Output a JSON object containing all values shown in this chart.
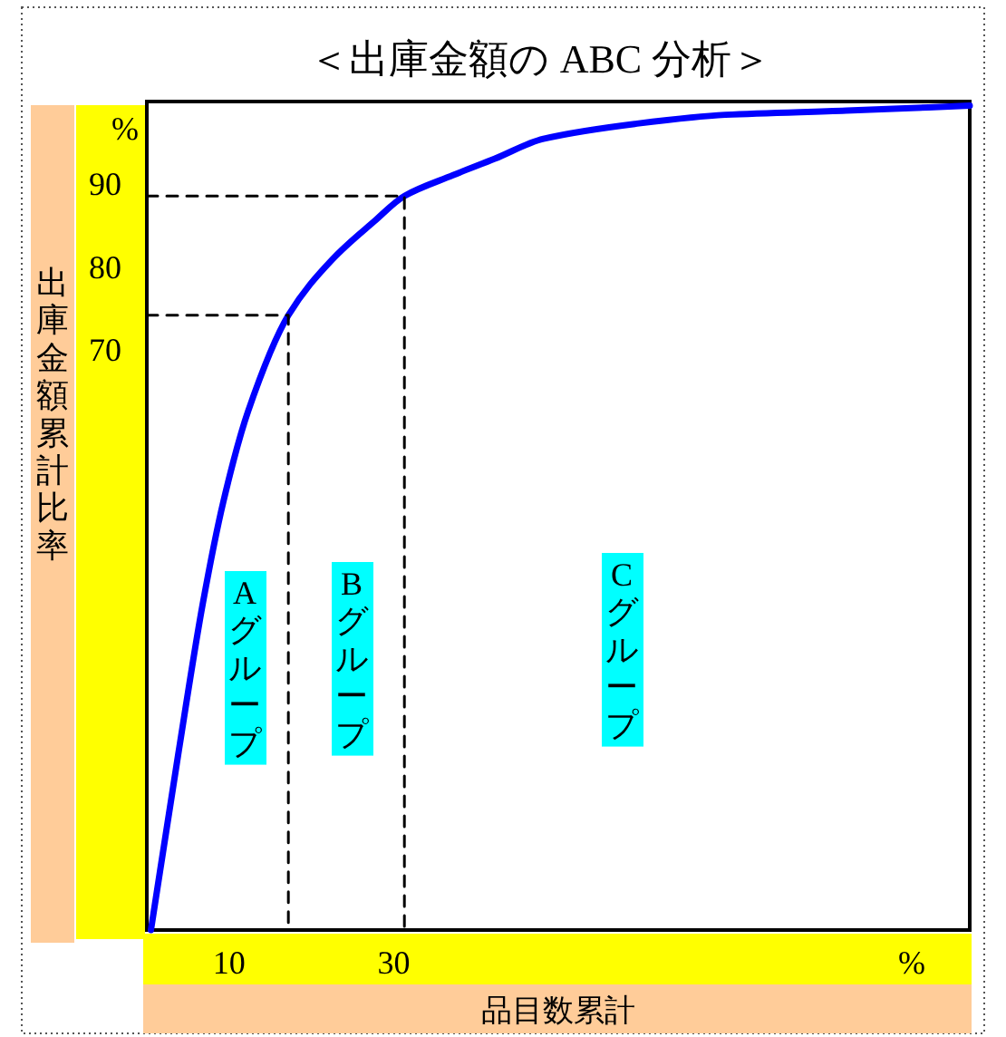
{
  "chart_data": {
    "type": "line",
    "title": "＜出庫金額の ABC 分析＞",
    "xlabel": "品目数累計",
    "ylabel": "出庫金額累計比率",
    "xlim": [
      0,
      100
    ],
    "ylim": [
      0,
      100
    ],
    "xticks": [
      10,
      30
    ],
    "yticks": [
      70,
      80,
      90
    ],
    "series": [
      {
        "color": "#0000ff",
        "line_style": "solid",
        "x": [
          0.5,
          3.8,
          6.8,
          9.3,
          12.3,
          17.2,
          22.5,
          27.7,
          31.3,
          37.2,
          42.3,
          48.2,
          59.3,
          70.3,
          85,
          100
        ],
        "values": [
          0,
          21.1,
          39.4,
          51.7,
          62.6,
          74.2,
          80.9,
          85.6,
          88.6,
          91.1,
          93.1,
          95.5,
          97.3,
          98.4,
          98.9,
          99.5
        ]
      },
      {
        "color": "#000000",
        "line_style": "dashed",
        "x": [
          0,
          17.2,
          17.2
        ],
        "values": [
          74.2,
          74.2,
          0
        ]
      },
      {
        "color": "#000000",
        "line_style": "dashed",
        "x": [
          0,
          31.3,
          31.3
        ],
        "values": [
          88.6,
          88.6,
          0
        ]
      }
    ],
    "annotations": [
      "Aグループ",
      "Bグループ",
      "Cグループ",
      "%",
      "%"
    ]
  }
}
